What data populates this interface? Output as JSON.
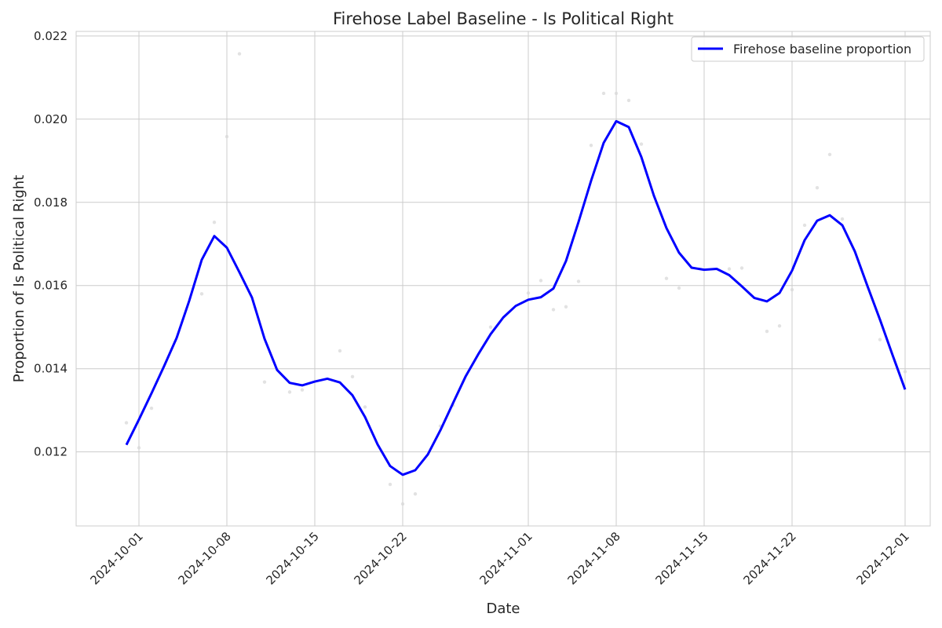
{
  "chart_data": {
    "type": "line",
    "title": "Firehose Label Baseline - Is Political Right",
    "xlabel": "Date",
    "ylabel": "Proportion of Is Political Right",
    "x_axis": {
      "type": "date",
      "range": [
        "2024-09-26",
        "2024-12-03"
      ],
      "ticks": [
        "2024-10-01",
        "2024-10-08",
        "2024-10-15",
        "2024-10-22",
        "2024-11-01",
        "2024-11-08",
        "2024-11-15",
        "2024-11-22",
        "2024-12-01"
      ]
    },
    "y_axis": {
      "range": [
        0.01022,
        0.02211
      ],
      "ticks": [
        "0.012",
        "0.014",
        "0.016",
        "0.018",
        "0.020",
        "0.022"
      ]
    },
    "grid": true,
    "legend_position": "top-right",
    "colors": {
      "line": "#0000ff",
      "scatter": "#d8d8d8",
      "grid": "#cccccc"
    },
    "series": [
      {
        "name": "Firehose baseline proportion",
        "x": [
          "2024-09-30",
          "2024-10-01",
          "2024-10-02",
          "2024-10-03",
          "2024-10-04",
          "2024-10-05",
          "2024-10-06",
          "2024-10-07",
          "2024-10-08",
          "2024-10-09",
          "2024-10-10",
          "2024-10-11",
          "2024-10-12",
          "2024-10-13",
          "2024-10-14",
          "2024-10-15",
          "2024-10-16",
          "2024-10-17",
          "2024-10-18",
          "2024-10-19",
          "2024-10-20",
          "2024-10-21",
          "2024-10-22",
          "2024-10-23",
          "2024-10-24",
          "2024-10-25",
          "2024-10-26",
          "2024-10-27",
          "2024-10-28",
          "2024-10-29",
          "2024-10-30",
          "2024-10-31",
          "2024-11-01",
          "2024-11-02",
          "2024-11-03",
          "2024-11-04",
          "2024-11-05",
          "2024-11-06",
          "2024-11-07",
          "2024-11-08",
          "2024-11-09",
          "2024-11-10",
          "2024-11-11",
          "2024-11-12",
          "2024-11-13",
          "2024-11-14",
          "2024-11-15",
          "2024-11-16",
          "2024-11-17",
          "2024-11-18",
          "2024-11-19",
          "2024-11-20",
          "2024-11-21",
          "2024-11-22",
          "2024-11-23",
          "2024-11-24",
          "2024-11-25",
          "2024-11-26",
          "2024-11-27",
          "2024-11-28",
          "2024-11-29",
          "2024-11-30",
          "2024-12-01"
        ],
        "values": [
          0.01217,
          0.01278,
          0.01341,
          0.01406,
          0.01474,
          0.01563,
          0.01662,
          0.01719,
          0.01691,
          0.01632,
          0.01571,
          0.01472,
          0.01397,
          0.01366,
          0.0136,
          0.01369,
          0.01376,
          0.01367,
          0.01336,
          0.01284,
          0.01218,
          0.01166,
          0.01145,
          0.01156,
          0.01194,
          0.01252,
          0.01317,
          0.01381,
          0.01434,
          0.01483,
          0.01523,
          0.01551,
          0.01566,
          0.01572,
          0.01593,
          0.01659,
          0.01753,
          0.01852,
          0.01943,
          0.01995,
          0.01981,
          0.01909,
          0.01816,
          0.01738,
          0.01679,
          0.01643,
          0.01638,
          0.0164,
          0.01625,
          0.01598,
          0.0157,
          0.01562,
          0.01582,
          0.01636,
          0.01709,
          0.01756,
          0.01769,
          0.01745,
          0.01682,
          0.01599,
          0.01518,
          0.01433,
          0.0135
        ]
      }
    ],
    "scatter_points": [
      {
        "x": "2024-09-30",
        "y": 0.0127
      },
      {
        "x": "2024-10-01",
        "y": 0.0121
      },
      {
        "x": "2024-10-02",
        "y": 0.01305
      },
      {
        "x": "2024-10-06",
        "y": 0.0158
      },
      {
        "x": "2024-10-07",
        "y": 0.01752
      },
      {
        "x": "2024-10-08",
        "y": 0.01958
      },
      {
        "x": "2024-10-09",
        "y": 0.02157
      },
      {
        "x": "2024-10-11",
        "y": 0.01368
      },
      {
        "x": "2024-10-13",
        "y": 0.01344
      },
      {
        "x": "2024-10-14",
        "y": 0.01349
      },
      {
        "x": "2024-10-17",
        "y": 0.01443
      },
      {
        "x": "2024-10-18",
        "y": 0.01381
      },
      {
        "x": "2024-10-19",
        "y": 0.01308
      },
      {
        "x": "2024-10-21",
        "y": 0.01122
      },
      {
        "x": "2024-10-22",
        "y": 0.01075
      },
      {
        "x": "2024-10-23",
        "y": 0.01099
      },
      {
        "x": "2024-10-25",
        "y": 0.01262
      },
      {
        "x": "2024-10-26",
        "y": 0.01312
      },
      {
        "x": "2024-10-29",
        "y": 0.015
      },
      {
        "x": "2024-11-01",
        "y": 0.01582
      },
      {
        "x": "2024-11-02",
        "y": 0.01612
      },
      {
        "x": "2024-11-03",
        "y": 0.01542
      },
      {
        "x": "2024-11-04",
        "y": 0.01549
      },
      {
        "x": "2024-11-05",
        "y": 0.0161
      },
      {
        "x": "2024-11-06",
        "y": 0.01937
      },
      {
        "x": "2024-11-07",
        "y": 0.02062
      },
      {
        "x": "2024-11-08",
        "y": 0.02062
      },
      {
        "x": "2024-11-09",
        "y": 0.02045
      },
      {
        "x": "2024-11-10",
        "y": 0.0194
      },
      {
        "x": "2024-11-12",
        "y": 0.01617
      },
      {
        "x": "2024-11-13",
        "y": 0.01594
      },
      {
        "x": "2024-11-17",
        "y": 0.0164
      },
      {
        "x": "2024-11-18",
        "y": 0.01642
      },
      {
        "x": "2024-11-20",
        "y": 0.0149
      },
      {
        "x": "2024-11-21",
        "y": 0.01503
      },
      {
        "x": "2024-11-22",
        "y": 0.0159
      },
      {
        "x": "2024-11-23",
        "y": 0.01745
      },
      {
        "x": "2024-11-24",
        "y": 0.01835
      },
      {
        "x": "2024-11-25",
        "y": 0.01915
      },
      {
        "x": "2024-11-26",
        "y": 0.0176
      },
      {
        "x": "2024-11-29",
        "y": 0.0147
      },
      {
        "x": "2024-12-01",
        "y": 0.01393
      }
    ]
  }
}
